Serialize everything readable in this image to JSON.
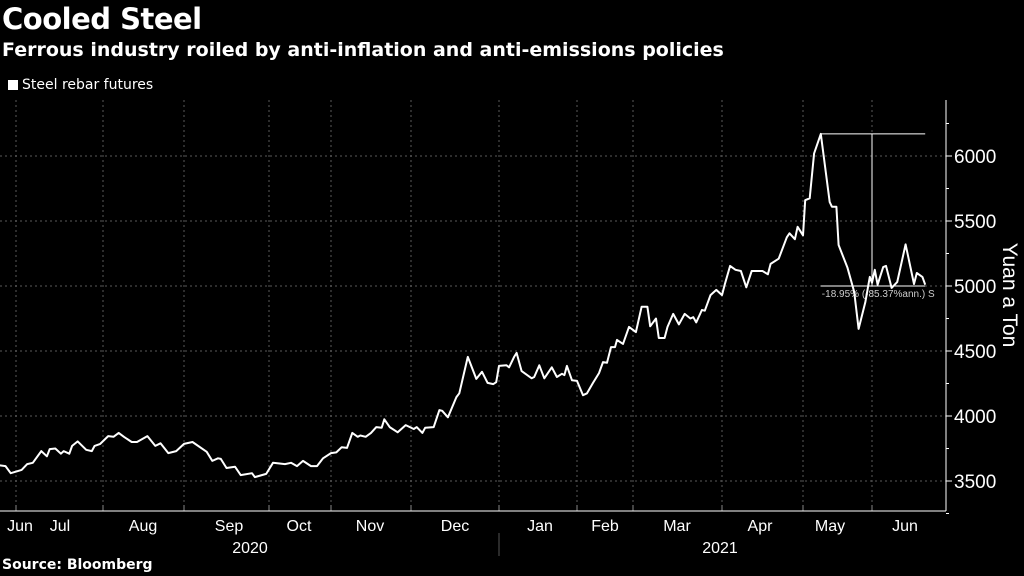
{
  "title": "Cooled Steel",
  "subtitle": "Ferrous industry roiled by anti-inflation and anti-emissions policies",
  "source": "Source: Bloomberg",
  "colors": {
    "background": "#000000",
    "line": "#ffffff",
    "grid": "#666666"
  },
  "chart_data": {
    "type": "line",
    "title": "Cooled Steel",
    "ylabel": "Yuan a Ton",
    "ylim": [
      3250,
      6400
    ],
    "yticks": [
      3500,
      4000,
      4500,
      5000,
      5500,
      6000
    ],
    "ytick_labels": [
      "3500",
      "4000",
      "4500",
      "5000",
      "5500",
      "6000"
    ],
    "y_axis_side": "right",
    "xtick_labels": [
      "Jun",
      "Jul",
      "Aug",
      "Sep",
      "Oct",
      "Nov",
      "Dec",
      "Jan",
      "Feb",
      "Mar",
      "Apr",
      "May",
      "Jun"
    ],
    "year_labels": [
      "2020",
      "2021"
    ],
    "grid": true,
    "legend_placement": "top-left",
    "series": [
      {
        "name": "Steel rebar futures",
        "color": "#ffffff",
        "points": [
          [
            "2020-06-24",
            3623
          ],
          [
            "2020-06-27",
            3615
          ],
          [
            "2020-06-29",
            3560
          ],
          [
            "2020-07-03",
            3585
          ],
          [
            "2020-07-05",
            3630
          ],
          [
            "2020-07-07",
            3640
          ],
          [
            "2020-07-10",
            3730
          ],
          [
            "2020-07-12",
            3690
          ],
          [
            "2020-07-13",
            3745
          ],
          [
            "2020-07-15",
            3750
          ],
          [
            "2020-07-17",
            3710
          ],
          [
            "2020-07-18",
            3730
          ],
          [
            "2020-07-20",
            3710
          ],
          [
            "2020-07-21",
            3770
          ],
          [
            "2020-07-23",
            3805
          ],
          [
            "2020-07-26",
            3740
          ],
          [
            "2020-07-28",
            3730
          ],
          [
            "2020-07-29",
            3770
          ],
          [
            "2020-07-31",
            3785
          ],
          [
            "2020-08-03",
            3845
          ],
          [
            "2020-08-05",
            3840
          ],
          [
            "2020-08-07",
            3870
          ],
          [
            "2020-08-09",
            3840
          ],
          [
            "2020-08-12",
            3800
          ],
          [
            "2020-08-14",
            3800
          ],
          [
            "2020-08-18",
            3845
          ],
          [
            "2020-08-21",
            3770
          ],
          [
            "2020-08-23",
            3790
          ],
          [
            "2020-08-26",
            3715
          ],
          [
            "2020-08-29",
            3730
          ],
          [
            "2020-09-01",
            3785
          ],
          [
            "2020-09-04",
            3800
          ],
          [
            "2020-09-09",
            3725
          ],
          [
            "2020-09-11",
            3655
          ],
          [
            "2020-09-13",
            3675
          ],
          [
            "2020-09-14",
            3670
          ],
          [
            "2020-09-16",
            3600
          ],
          [
            "2020-09-19",
            3610
          ],
          [
            "2020-09-21",
            3545
          ],
          [
            "2020-09-25",
            3560
          ],
          [
            "2020-09-26",
            3530
          ],
          [
            "2020-09-30",
            3555
          ],
          [
            "2020-10-03",
            3640
          ],
          [
            "2020-10-09",
            3630
          ],
          [
            "2020-10-12",
            3640
          ],
          [
            "2020-10-15",
            3615
          ],
          [
            "2020-10-18",
            3655
          ],
          [
            "2020-10-22",
            3615
          ],
          [
            "2020-10-25",
            3615
          ],
          [
            "2020-10-28",
            3675
          ],
          [
            "2020-11-01",
            3715
          ],
          [
            "2020-11-03",
            3720
          ],
          [
            "2020-11-05",
            3760
          ],
          [
            "2020-11-07",
            3755
          ],
          [
            "2020-11-09",
            3870
          ],
          [
            "2020-11-11",
            3840
          ],
          [
            "2020-11-12",
            3850
          ],
          [
            "2020-11-14",
            3840
          ],
          [
            "2020-11-16",
            3870
          ],
          [
            "2020-11-18",
            3915
          ],
          [
            "2020-11-20",
            3910
          ],
          [
            "2020-11-21",
            3975
          ],
          [
            "2020-11-23",
            3915
          ],
          [
            "2020-11-26",
            3875
          ],
          [
            "2020-11-29",
            3930
          ],
          [
            "2020-12-02",
            3900
          ],
          [
            "2020-12-03",
            3915
          ],
          [
            "2020-12-05",
            3870
          ],
          [
            "2020-12-06",
            3910
          ],
          [
            "2020-12-09",
            3915
          ],
          [
            "2020-12-11",
            4045
          ],
          [
            "2020-12-12",
            4040
          ],
          [
            "2020-12-14",
            3990
          ],
          [
            "2020-12-17",
            4145
          ],
          [
            "2020-12-18",
            4175
          ],
          [
            "2020-12-21",
            4455
          ],
          [
            "2020-12-24",
            4285
          ],
          [
            "2020-12-26",
            4340
          ],
          [
            "2020-12-28",
            4255
          ],
          [
            "2020-12-30",
            4245
          ],
          [
            "2020-12-31",
            4260
          ],
          [
            "2021-01-01",
            4385
          ],
          [
            "2021-01-04",
            4390
          ],
          [
            "2021-01-05",
            4375
          ],
          [
            "2021-01-07",
            4455
          ],
          [
            "2021-01-08",
            4485
          ],
          [
            "2021-01-10",
            4345
          ],
          [
            "2021-01-14",
            4290
          ],
          [
            "2021-01-15",
            4300
          ],
          [
            "2021-01-17",
            4390
          ],
          [
            "2021-01-19",
            4290
          ],
          [
            "2021-01-22",
            4375
          ],
          [
            "2021-01-24",
            4300
          ],
          [
            "2021-01-26",
            4325
          ],
          [
            "2021-01-27",
            4315
          ],
          [
            "2021-01-28",
            4385
          ],
          [
            "2021-01-30",
            4275
          ],
          [
            "2021-02-01",
            4270
          ],
          [
            "2021-02-04",
            4160
          ],
          [
            "2021-02-06",
            4175
          ],
          [
            "2021-02-09",
            4255
          ],
          [
            "2021-02-12",
            4330
          ],
          [
            "2021-02-14",
            4415
          ],
          [
            "2021-02-16",
            4410
          ],
          [
            "2021-02-18",
            4530
          ],
          [
            "2021-02-20",
            4530
          ],
          [
            "2021-02-21",
            4585
          ],
          [
            "2021-02-24",
            4555
          ],
          [
            "2021-02-27",
            4685
          ],
          [
            "2021-03-02",
            4645
          ],
          [
            "2021-03-04",
            4840
          ],
          [
            "2021-03-06",
            4840
          ],
          [
            "2021-03-07",
            4690
          ],
          [
            "2021-03-09",
            4750
          ],
          [
            "2021-03-10",
            4600
          ],
          [
            "2021-03-12",
            4600
          ],
          [
            "2021-03-13",
            4685
          ],
          [
            "2021-03-15",
            4785
          ],
          [
            "2021-03-17",
            4705
          ],
          [
            "2021-03-19",
            4785
          ],
          [
            "2021-03-21",
            4750
          ],
          [
            "2021-03-22",
            4760
          ],
          [
            "2021-03-23",
            4720
          ],
          [
            "2021-03-25",
            4815
          ],
          [
            "2021-03-26",
            4810
          ],
          [
            "2021-03-28",
            4930
          ],
          [
            "2021-03-30",
            4970
          ],
          [
            "2021-04-01",
            4930
          ],
          [
            "2021-04-02",
            5010
          ],
          [
            "2021-04-04",
            5155
          ],
          [
            "2021-04-06",
            5125
          ],
          [
            "2021-04-08",
            5115
          ],
          [
            "2021-04-10",
            4990
          ],
          [
            "2021-04-12",
            5115
          ],
          [
            "2021-04-16",
            5115
          ],
          [
            "2021-04-18",
            5090
          ],
          [
            "2021-04-19",
            5170
          ],
          [
            "2021-04-22",
            5210
          ],
          [
            "2021-04-25",
            5375
          ],
          [
            "2021-04-26",
            5405
          ],
          [
            "2021-04-28",
            5360
          ],
          [
            "2021-04-29",
            5455
          ],
          [
            "2021-05-01",
            5390
          ],
          [
            "2021-05-02",
            5660
          ],
          [
            "2021-05-04",
            5675
          ],
          [
            "2021-05-06",
            6020
          ],
          [
            "2021-05-09",
            6170
          ],
          [
            "2021-05-13",
            5645
          ],
          [
            "2021-05-14",
            5610
          ],
          [
            "2021-05-16",
            5610
          ],
          [
            "2021-05-17",
            5315
          ],
          [
            "2021-05-21",
            5140
          ],
          [
            "2021-05-24",
            4955
          ],
          [
            "2021-05-26",
            4670
          ],
          [
            "2021-05-29",
            4875
          ],
          [
            "2021-05-31",
            5070
          ],
          [
            "2021-06-01",
            5025
          ],
          [
            "2021-06-02",
            5125
          ],
          [
            "2021-06-03",
            5010
          ],
          [
            "2021-06-05",
            5145
          ],
          [
            "2021-06-06",
            5155
          ],
          [
            "2021-06-08",
            4985
          ],
          [
            "2021-06-10",
            5030
          ],
          [
            "2021-06-13",
            5320
          ],
          [
            "2021-06-16",
            5015
          ],
          [
            "2021-06-17",
            5100
          ],
          [
            "2021-06-19",
            5070
          ],
          [
            "2021-06-20",
            5010
          ]
        ]
      }
    ],
    "annotations": [
      {
        "type": "drawdown",
        "from_date": "2021-05-09",
        "high": 6170,
        "low": 5000,
        "measure_date": "2021-06-01",
        "end_date": "2021-06-20",
        "label": "-18.95% (-85.37%ann.) S"
      }
    ]
  }
}
